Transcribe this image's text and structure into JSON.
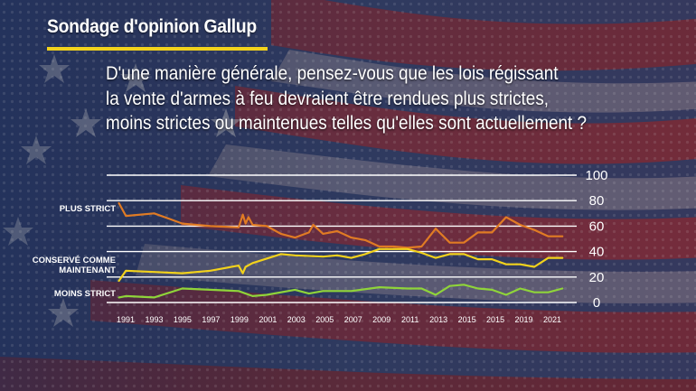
{
  "header": {
    "tag": "Sondage d'opinion Gallup"
  },
  "question": {
    "lines": [
      "D'une manière générale, pensez-vous que les lois régissant",
      "la vente d'armes à feu devraient être rendues plus strictes,",
      "moins strictes ou maintenues telles qu'elles sont actuellement ?"
    ]
  },
  "colors": {
    "tag_underline": "#f2d21c"
  },
  "chart_data": {
    "type": "line",
    "title": "",
    "xlabel": "",
    "ylabel": "",
    "ylim": [
      0,
      100
    ],
    "xlim": [
      1990.4,
      2022.5
    ],
    "yticks": [
      0,
      20,
      40,
      60,
      80,
      100
    ],
    "x_tick_labels": [
      "1991",
      "1993",
      "1995",
      "1997",
      "1999",
      "2001",
      "2003",
      "2005",
      "2007",
      "2009",
      "2011",
      "2013",
      "2015",
      "2015",
      "2019",
      "2021"
    ],
    "grid": true,
    "series": [
      {
        "name": "PLUS STRICT",
        "color": "#e07b24",
        "x": [
          1990.5,
          1991,
          1993,
          1994,
          1995,
          1996,
          1997,
          1999,
          1999.3,
          1999.5,
          1999.7,
          2000,
          2001,
          2002,
          2003,
          2004,
          2004.3,
          2005,
          2006,
          2007,
          2008,
          2009,
          2010,
          2011,
          2012,
          2013,
          2014,
          2015,
          2016,
          2017,
          2018,
          2019,
          2020,
          2021,
          2022
        ],
        "y": [
          78,
          68,
          70,
          66,
          62,
          61,
          60,
          59,
          69,
          62,
          67,
          61,
          60,
          54,
          51,
          55,
          61,
          54,
          56,
          51,
          49,
          44,
          44,
          43,
          44,
          58,
          47,
          47,
          55,
          55,
          67,
          61,
          57,
          52,
          52
        ]
      },
      {
        "name": "CONSERVÉ COMME MAINTENANT",
        "color": "#f2d21c",
        "x": [
          1990.5,
          1991,
          1993,
          1995,
          1997,
          1999,
          1999.3,
          1999.5,
          2000,
          2002,
          2003,
          2005,
          2006,
          2007,
          2008,
          2009,
          2010,
          2011,
          2012,
          2013,
          2014,
          2015,
          2016,
          2017,
          2018,
          2019,
          2020,
          2021,
          2022
        ],
        "y": [
          17,
          25,
          24,
          23,
          25,
          29,
          23,
          28,
          31,
          38,
          37,
          36,
          37,
          35,
          38,
          42,
          42,
          42,
          39,
          35,
          38,
          38,
          34,
          34,
          30,
          30,
          28,
          35,
          35
        ]
      },
      {
        "name": "MOINS STRICT",
        "color": "#8fd43a",
        "x": [
          1990.5,
          1991,
          1993,
          1995,
          1997,
          1999,
          2000,
          2001,
          2003,
          2004,
          2005,
          2007,
          2009,
          2011,
          2012,
          2013,
          2014,
          2015,
          2016,
          2017,
          2018,
          2019,
          2020,
          2021,
          2022
        ],
        "y": [
          4,
          5,
          4,
          11,
          10,
          9,
          5,
          6,
          10,
          7,
          9,
          9,
          12,
          11,
          11,
          6,
          13,
          14,
          11,
          10,
          6,
          11,
          8,
          8,
          11
        ]
      }
    ],
    "series_label_lines": [
      [
        "PLUS STRICT"
      ],
      [
        "CONSERVÉ COMME",
        "MAINTENANT"
      ],
      [
        "MOINS STRICT"
      ]
    ]
  }
}
